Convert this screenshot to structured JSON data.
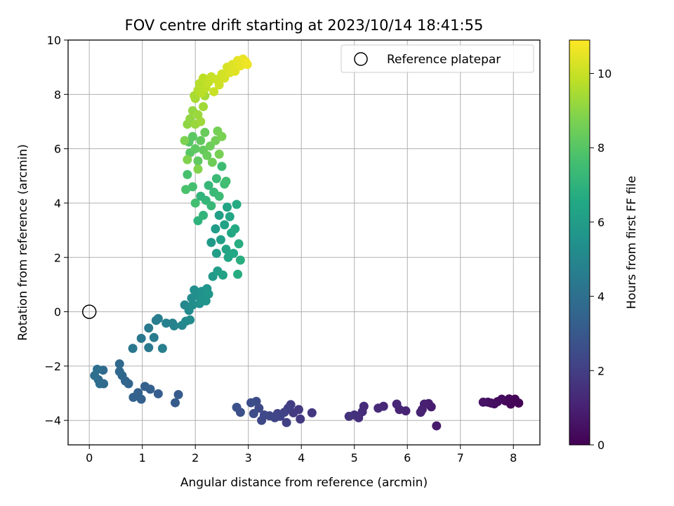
{
  "chart_data": {
    "type": "scatter",
    "title": "FOV centre drift starting at 2023/10/14 18:41:55",
    "xlabel": "Angular distance from reference (arcmin)",
    "ylabel": "Rotation from reference (arcmin)",
    "colorbar_label": "Hours from first FF file",
    "xlim": [
      -0.4,
      8.5
    ],
    "ylim": [
      -4.9,
      10
    ],
    "colorbar_range": [
      0,
      10.9
    ],
    "colormap": "viridis",
    "grid": true,
    "legend_position": "upper-right",
    "x_ticks": [
      {
        "v": 0,
        "label": "0"
      },
      {
        "v": 1,
        "label": "1"
      },
      {
        "v": 2,
        "label": "2"
      },
      {
        "v": 3,
        "label": "3"
      },
      {
        "v": 4,
        "label": "4"
      },
      {
        "v": 5,
        "label": "5"
      },
      {
        "v": 6,
        "label": "6"
      },
      {
        "v": 7,
        "label": "7"
      },
      {
        "v": 8,
        "label": "8"
      }
    ],
    "y_ticks": [
      {
        "v": -4,
        "label": "−4"
      },
      {
        "v": -2,
        "label": "−2"
      },
      {
        "v": 0,
        "label": "0"
      },
      {
        "v": 2,
        "label": "2"
      },
      {
        "v": 4,
        "label": "4"
      },
      {
        "v": 6,
        "label": "6"
      },
      {
        "v": 8,
        "label": "8"
      },
      {
        "v": 10,
        "label": "10"
      }
    ],
    "colorbar_ticks": [
      {
        "v": 0,
        "label": "0"
      },
      {
        "v": 2,
        "label": "2"
      },
      {
        "v": 4,
        "label": "4"
      },
      {
        "v": 6,
        "label": "6"
      },
      {
        "v": 8,
        "label": "8"
      },
      {
        "v": 10,
        "label": "10"
      }
    ],
    "reference": {
      "label": "Reference platepar",
      "x": 0,
      "y": 0
    },
    "points": [
      [
        8.1,
        -3.36,
        0.05
      ],
      [
        8.03,
        -3.22,
        0.1
      ],
      [
        7.95,
        -3.4,
        0.15
      ],
      [
        7.92,
        -3.21,
        0.2
      ],
      [
        7.85,
        -3.28,
        0.25
      ],
      [
        7.78,
        -3.22,
        0.3
      ],
      [
        7.7,
        -3.31,
        0.35
      ],
      [
        7.64,
        -3.39,
        0.4
      ],
      [
        7.58,
        -3.36,
        0.45
      ],
      [
        7.52,
        -3.33,
        0.5
      ],
      [
        7.43,
        -3.33,
        0.55
      ],
      [
        6.55,
        -4.2,
        0.8
      ],
      [
        6.45,
        -3.5,
        0.85
      ],
      [
        6.4,
        -3.38,
        0.9
      ],
      [
        6.32,
        -3.4,
        0.95
      ],
      [
        6.28,
        -3.6,
        1.0
      ],
      [
        6.25,
        -3.7,
        1.05
      ],
      [
        5.97,
        -3.65,
        1.1
      ],
      [
        5.85,
        -3.6,
        1.15
      ],
      [
        5.8,
        -3.4,
        1.2
      ],
      [
        5.55,
        -3.48,
        1.25
      ],
      [
        5.45,
        -3.55,
        1.3
      ],
      [
        5.18,
        -3.48,
        1.35
      ],
      [
        5.15,
        -3.68,
        1.4
      ],
      [
        5.08,
        -3.9,
        1.45
      ],
      [
        5.0,
        -3.8,
        1.5
      ],
      [
        4.9,
        -3.85,
        1.55
      ],
      [
        4.2,
        -3.72,
        1.75
      ],
      [
        3.98,
        -3.95,
        1.8
      ],
      [
        3.95,
        -3.6,
        1.85
      ],
      [
        3.85,
        -3.72,
        1.9
      ],
      [
        3.8,
        -3.42,
        1.95
      ],
      [
        3.75,
        -3.55,
        2.0
      ],
      [
        3.72,
        -4.08,
        2.05
      ],
      [
        3.68,
        -3.7,
        2.1
      ],
      [
        3.6,
        -3.85,
        2.15
      ],
      [
        3.55,
        -3.75,
        2.2
      ],
      [
        3.5,
        -3.9,
        2.25
      ],
      [
        3.4,
        -3.83,
        2.3
      ],
      [
        3.3,
        -3.8,
        2.35
      ],
      [
        3.25,
        -4.0,
        2.4
      ],
      [
        3.2,
        -3.55,
        2.45
      ],
      [
        3.15,
        -3.3,
        2.5
      ],
      [
        3.1,
        -3.75,
        2.55
      ],
      [
        3.05,
        -3.35,
        2.6
      ],
      [
        2.85,
        -3.7,
        2.65
      ],
      [
        2.78,
        -3.52,
        2.7
      ],
      [
        1.68,
        -3.05,
        3.1
      ],
      [
        1.62,
        -3.35,
        3.15
      ],
      [
        1.3,
        -3.02,
        3.2
      ],
      [
        1.15,
        -2.85,
        3.25
      ],
      [
        1.05,
        -2.75,
        3.3
      ],
      [
        0.98,
        -3.22,
        3.35
      ],
      [
        0.92,
        -2.98,
        3.4
      ],
      [
        0.83,
        -3.15,
        3.45
      ],
      [
        0.74,
        -2.65,
        3.5
      ],
      [
        0.68,
        -2.55,
        3.55
      ],
      [
        0.62,
        -2.35,
        3.6
      ],
      [
        0.57,
        -2.2,
        3.65
      ],
      [
        0.57,
        -1.92,
        3.7
      ],
      [
        0.27,
        -2.65,
        3.75
      ],
      [
        0.26,
        -2.15,
        3.8
      ],
      [
        0.2,
        -2.65,
        3.85
      ],
      [
        0.17,
        -2.5,
        3.9
      ],
      [
        0.15,
        -2.12,
        3.95
      ],
      [
        0.1,
        -2.35,
        4.0
      ],
      [
        0.82,
        -1.35,
        4.3
      ],
      [
        0.98,
        -0.98,
        4.35
      ],
      [
        1.12,
        -1.32,
        4.4
      ],
      [
        1.12,
        -0.6,
        4.45
      ],
      [
        1.22,
        -0.95,
        4.5
      ],
      [
        1.26,
        -0.32,
        4.55
      ],
      [
        1.3,
        -0.25,
        4.6
      ],
      [
        1.38,
        -1.35,
        4.65
      ],
      [
        1.45,
        -0.42,
        4.7
      ],
      [
        1.57,
        -0.42,
        4.75
      ],
      [
        1.6,
        -0.52,
        4.8
      ],
      [
        1.75,
        -0.5,
        5.0
      ],
      [
        1.8,
        0.25,
        5.05
      ],
      [
        1.82,
        -0.35,
        5.1
      ],
      [
        1.88,
        0.05,
        5.15
      ],
      [
        1.9,
        -0.3,
        5.2
      ],
      [
        1.93,
        0.5,
        5.25
      ],
      [
        1.95,
        0.25,
        5.3
      ],
      [
        1.98,
        0.8,
        5.35
      ],
      [
        2.02,
        0.6,
        5.4
      ],
      [
        2.08,
        0.3,
        5.45
      ],
      [
        2.12,
        0.75,
        5.5
      ],
      [
        2.15,
        0.55,
        5.55
      ],
      [
        2.2,
        0.4,
        5.6
      ],
      [
        2.22,
        0.85,
        5.65
      ],
      [
        2.25,
        0.65,
        5.7
      ],
      [
        2.3,
        2.55,
        5.85
      ],
      [
        2.33,
        1.3,
        5.9
      ],
      [
        2.38,
        3.05,
        5.95
      ],
      [
        2.4,
        2.15,
        6.0
      ],
      [
        2.42,
        1.5,
        6.05
      ],
      [
        2.45,
        3.55,
        6.1
      ],
      [
        2.48,
        2.65,
        6.15
      ],
      [
        2.52,
        1.35,
        6.2
      ],
      [
        2.55,
        3.2,
        6.25
      ],
      [
        2.58,
        2.3,
        6.3
      ],
      [
        2.6,
        3.85,
        6.35
      ],
      [
        2.62,
        2.0,
        6.4
      ],
      [
        2.65,
        3.5,
        6.45
      ],
      [
        2.68,
        2.9,
        6.5
      ],
      [
        2.72,
        2.15,
        6.55
      ],
      [
        2.75,
        3.05,
        6.6
      ],
      [
        2.78,
        3.95,
        6.65
      ],
      [
        2.8,
        1.38,
        6.7
      ],
      [
        2.82,
        2.5,
        6.75
      ],
      [
        2.85,
        1.9,
        6.8
      ],
      [
        2.05,
        3.35,
        7.0
      ],
      [
        2.1,
        4.25,
        7.05
      ],
      [
        2.15,
        3.55,
        7.1
      ],
      [
        2.2,
        4.1,
        7.15
      ],
      [
        2.25,
        4.65,
        7.2
      ],
      [
        2.3,
        3.9,
        7.25
      ],
      [
        2.35,
        4.4,
        7.3
      ],
      [
        2.4,
        4.9,
        7.35
      ],
      [
        2.45,
        4.25,
        7.4
      ],
      [
        2.5,
        5.35,
        7.45
      ],
      [
        2.55,
        4.7,
        7.5
      ],
      [
        2.58,
        4.8,
        7.55
      ],
      [
        2.0,
        4.0,
        7.6
      ],
      [
        1.95,
        4.6,
        7.65
      ],
      [
        1.85,
        5.05,
        7.7
      ],
      [
        1.82,
        4.5,
        7.75
      ],
      [
        1.88,
        6.25,
        8.0
      ],
      [
        1.9,
        5.85,
        8.05
      ],
      [
        1.95,
        6.45,
        8.1
      ],
      [
        2.0,
        6.0,
        8.15
      ],
      [
        2.05,
        5.55,
        8.2
      ],
      [
        2.1,
        6.3,
        8.25
      ],
      [
        2.15,
        5.95,
        8.3
      ],
      [
        2.18,
        6.6,
        8.35
      ],
      [
        2.22,
        5.75,
        8.4
      ],
      [
        2.28,
        6.1,
        8.45
      ],
      [
        2.32,
        5.5,
        8.5
      ],
      [
        2.38,
        6.3,
        8.55
      ],
      [
        2.42,
        6.65,
        8.6
      ],
      [
        2.45,
        5.8,
        8.65
      ],
      [
        2.5,
        6.45,
        8.7
      ],
      [
        1.8,
        6.3,
        8.75
      ],
      [
        1.85,
        5.6,
        8.8
      ],
      [
        2.05,
        5.25,
        8.85
      ],
      [
        1.85,
        6.9,
        9.05
      ],
      [
        1.9,
        7.1,
        9.1
      ],
      [
        1.95,
        7.4,
        9.15
      ],
      [
        2.0,
        6.9,
        9.2
      ],
      [
        2.05,
        7.25,
        9.25
      ],
      [
        2.1,
        7.0,
        9.3
      ],
      [
        2.15,
        7.55,
        9.35
      ],
      [
        2.18,
        7.95,
        9.4
      ],
      [
        2.0,
        7.85,
        9.45
      ],
      [
        1.98,
        7.95,
        9.5
      ],
      [
        2.05,
        8.15,
        9.65
      ],
      [
        2.08,
        8.4,
        9.7
      ],
      [
        2.12,
        8.05,
        9.75
      ],
      [
        2.15,
        8.6,
        9.8
      ],
      [
        2.2,
        8.25,
        9.85
      ],
      [
        2.25,
        8.45,
        9.9
      ],
      [
        2.3,
        8.65,
        9.95
      ],
      [
        2.35,
        8.1,
        10.0
      ],
      [
        2.4,
        8.55,
        10.05
      ],
      [
        2.45,
        8.35,
        10.1
      ],
      [
        2.5,
        8.75,
        10.15
      ],
      [
        2.55,
        8.6,
        10.2
      ],
      [
        2.6,
        9.0,
        10.25
      ],
      [
        2.65,
        8.8,
        10.3
      ],
      [
        2.7,
        9.1,
        10.35
      ],
      [
        2.75,
        8.85,
        10.4
      ],
      [
        2.8,
        9.25,
        10.45
      ],
      [
        2.85,
        9.05,
        10.5
      ],
      [
        2.9,
        9.3,
        10.55
      ],
      [
        2.95,
        9.2,
        10.6
      ],
      [
        2.98,
        9.1,
        10.65
      ]
    ]
  }
}
